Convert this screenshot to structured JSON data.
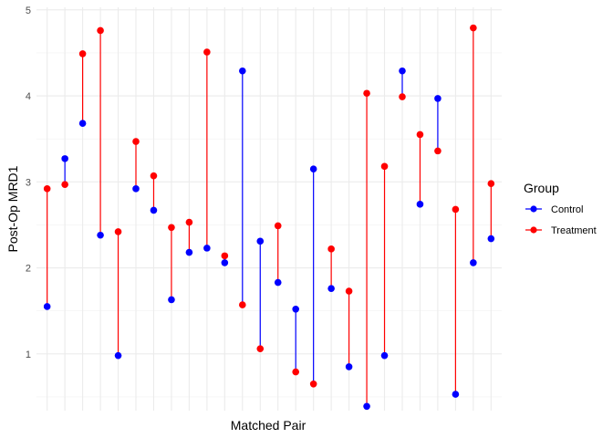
{
  "chart_data": {
    "type": "dumbbell",
    "title": "",
    "xlabel": "Matched Pair",
    "ylabel": "Post-Op MRD1",
    "ylim": [
      0.34,
      5.03
    ],
    "yticks": [
      "1",
      "2",
      "3",
      "4",
      "5"
    ],
    "grid": true,
    "legend": {
      "title": "Group",
      "position": "right",
      "entries": [
        {
          "name": "Control",
          "color": "#0000ff"
        },
        {
          "name": "Treatment",
          "color": "#ff0000"
        }
      ]
    },
    "colors": {
      "Control": "#0000ff",
      "Treatment": "#ff0000"
    },
    "pairs": [
      {
        "control": 1.55,
        "treatment": 2.92
      },
      {
        "control": 3.27,
        "treatment": 2.97
      },
      {
        "control": 3.68,
        "treatment": 4.49
      },
      {
        "control": 2.38,
        "treatment": 4.76
      },
      {
        "control": 0.98,
        "treatment": 2.42
      },
      {
        "control": 2.92,
        "treatment": 3.47
      },
      {
        "control": 2.67,
        "treatment": 3.07
      },
      {
        "control": 1.63,
        "treatment": 2.47
      },
      {
        "control": 2.18,
        "treatment": 2.53
      },
      {
        "control": 2.23,
        "treatment": 4.51
      },
      {
        "control": 2.06,
        "treatment": 2.14
      },
      {
        "control": 4.29,
        "treatment": 1.57
      },
      {
        "control": 2.31,
        "treatment": 1.06
      },
      {
        "control": 1.83,
        "treatment": 2.49
      },
      {
        "control": 1.52,
        "treatment": 0.79
      },
      {
        "control": 3.15,
        "treatment": 0.65
      },
      {
        "control": 1.76,
        "treatment": 2.22
      },
      {
        "control": 0.85,
        "treatment": 1.73
      },
      {
        "control": 0.39,
        "treatment": 4.03
      },
      {
        "control": 0.98,
        "treatment": 3.18
      },
      {
        "control": 4.29,
        "treatment": 3.99
      },
      {
        "control": 2.74,
        "treatment": 3.55
      },
      {
        "control": 3.97,
        "treatment": 3.36
      },
      {
        "control": 0.53,
        "treatment": 2.68
      },
      {
        "control": 2.06,
        "treatment": 4.79
      },
      {
        "control": 2.34,
        "treatment": 2.98
      }
    ]
  }
}
